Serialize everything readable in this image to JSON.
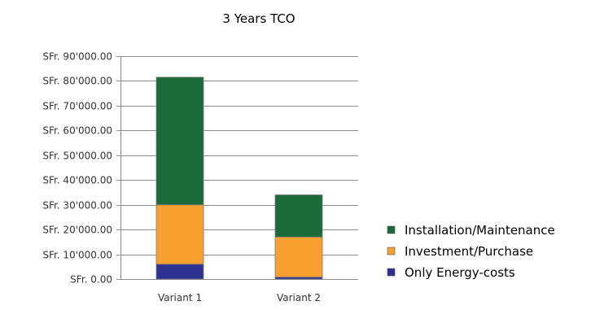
{
  "chart_data": {
    "type": "bar",
    "stacked": true,
    "title": "3 Years TCO",
    "xlabel": "",
    "ylabel": "",
    "categories": [
      "Variant 1",
      "Variant 2"
    ],
    "series": [
      {
        "name": "Only Energy-costs",
        "values": [
          6000,
          800
        ],
        "color": "#2e3192"
      },
      {
        "name": "Investment/Purchase",
        "values": [
          24000,
          16200
        ],
        "color": "#f7a030"
      },
      {
        "name": "Installation/Maintenance",
        "values": [
          51500,
          17000
        ],
        "color": "#1b6b3a"
      }
    ],
    "ylim": [
      0,
      90000
    ],
    "ytick_step": 10000,
    "ytick_labels": [
      "SFr. 0.00",
      "SFr. 10'000.00",
      "SFr. 20'000.00",
      "SFr. 30'000.00",
      "SFr. 40'000.00",
      "SFr. 50'000.00",
      "SFr. 60'000.00",
      "SFr. 70'000.00",
      "SFr. 80'000.00",
      "SFr. 90'000.00"
    ],
    "legend_order": [
      "Installation/Maintenance",
      "Investment/Purchase",
      "Only Energy-costs"
    ],
    "legend_position": "right",
    "grid": true
  }
}
